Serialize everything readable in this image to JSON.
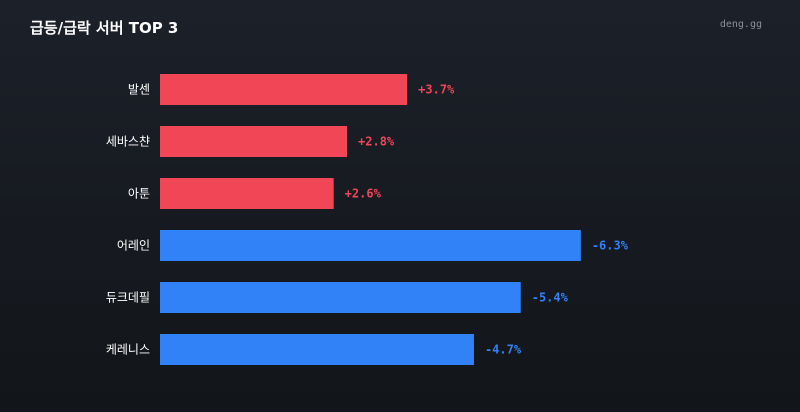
{
  "header": {
    "title": "급등/급락 서버 TOP 3",
    "brand": "deng.gg"
  },
  "colors": {
    "rise": "#f04656",
    "fall": "#3182f6"
  },
  "chart_data": {
    "type": "bar",
    "orientation": "horizontal",
    "title": "급등/급락 서버 TOP 3",
    "xlabel": "",
    "ylabel": "",
    "grid": false,
    "categories": [
      "발센",
      "세바스챤",
      "아툰",
      "어레인",
      "듀크데필",
      "케레니스"
    ],
    "values": [
      3.7,
      2.8,
      2.6,
      -6.3,
      -5.4,
      -4.7
    ],
    "value_labels": [
      "+3.7%",
      "+2.8%",
      "+2.6%",
      "-6.3%",
      "-5.4%",
      "-4.7%"
    ],
    "unit": "%"
  }
}
